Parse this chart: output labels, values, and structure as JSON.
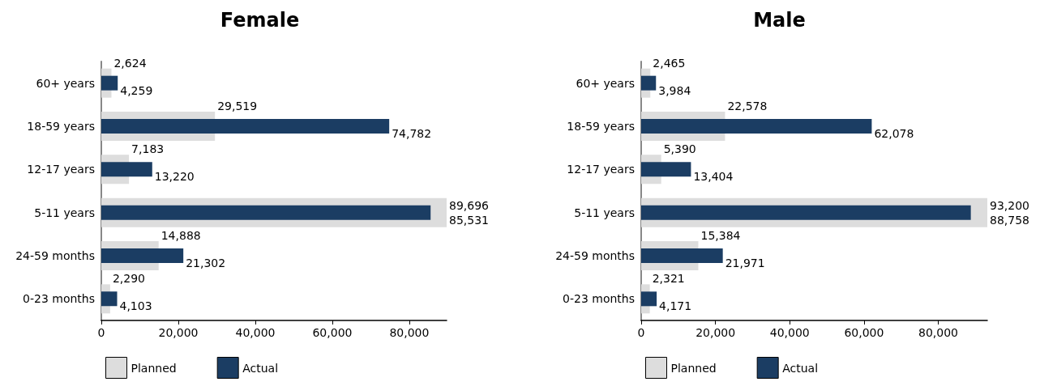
{
  "chart_data": [
    {
      "type": "bar",
      "title": "Female",
      "orientation": "horizontal",
      "categories": [
        "60+ years",
        "18-59 years",
        "12-17 years",
        "5-11 years",
        "24-59 months",
        "0-23 months"
      ],
      "series": [
        {
          "name": "Planned",
          "color": "#dddddd",
          "values": [
            2624,
            29519,
            7183,
            89696,
            14888,
            2290
          ],
          "value_labels": [
            "2,624",
            "29,519",
            "7,183",
            "89,696",
            "14,888",
            "2,290"
          ]
        },
        {
          "name": "Actual",
          "color": "#1b3d63",
          "values": [
            4259,
            74782,
            13220,
            85531,
            21302,
            4103
          ],
          "value_labels": [
            "4,259",
            "74,782",
            "13,220",
            "85,531",
            "21,302",
            "4,103"
          ]
        }
      ],
      "xlim": [
        0,
        89696
      ],
      "xticks": [
        0,
        {
          "value": 20000,
          "label": "20,000"
        },
        {
          "value": 40000,
          "label": "40,000"
        },
        {
          "value": 60000,
          "label": "60,000"
        },
        {
          "value": 80000,
          "label": "80,000"
        }
      ],
      "legend": "bottom left",
      "grid": false
    },
    {
      "type": "bar",
      "title": "Male",
      "orientation": "horizontal",
      "categories": [
        "60+ years",
        "18-59 years",
        "12-17 years",
        "5-11 years",
        "24-59 months",
        "0-23 months"
      ],
      "series": [
        {
          "name": "Planned",
          "color": "#dddddd",
          "values": [
            2465,
            22578,
            5390,
            93200,
            15384,
            2321
          ],
          "value_labels": [
            "2,465",
            "22,578",
            "5,390",
            "93,200",
            "15,384",
            "2,321"
          ]
        },
        {
          "name": "Actual",
          "color": "#1b3d63",
          "values": [
            3984,
            62078,
            13404,
            88758,
            21971,
            4171
          ],
          "value_labels": [
            "3,984",
            "62,078",
            "13,404",
            "88,758",
            "21,971",
            "4,171"
          ]
        }
      ],
      "xlim": [
        0,
        93200
      ],
      "xticks": [
        0,
        {
          "value": 20000,
          "label": "20,000"
        },
        {
          "value": 40000,
          "label": "40,000"
        },
        {
          "value": 60000,
          "label": "60,000"
        },
        {
          "value": 80000,
          "label": "80,000"
        }
      ],
      "legend": "bottom left",
      "grid": false
    }
  ]
}
